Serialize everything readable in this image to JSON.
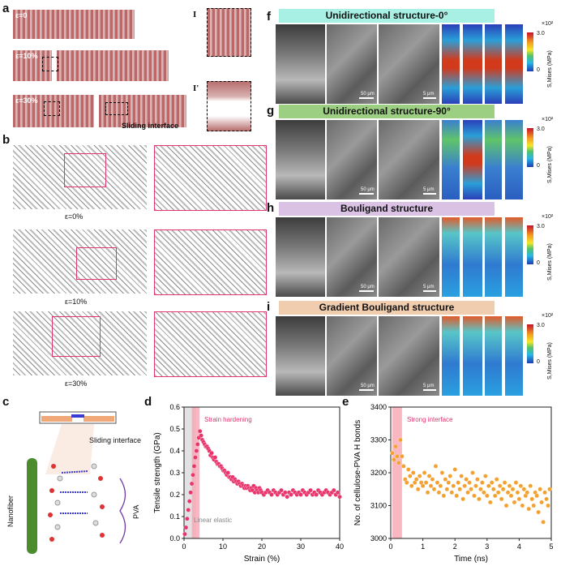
{
  "panels": {
    "a": {
      "label": "a",
      "strains": [
        "ε=0",
        "ε=10%",
        "ε=30%"
      ],
      "interface_label": "Sliding interface",
      "zoom_labels": [
        "I",
        "I'"
      ]
    },
    "b": {
      "label": "b",
      "strains": [
        "ε=0%",
        "ε=10%",
        "ε=30%"
      ]
    },
    "c": {
      "label": "c",
      "sliding": "Sliding interface",
      "nanofiber": "Nanofiber",
      "pva": "PVA"
    },
    "f": {
      "label": "f",
      "title": "Unidirectional structure-0°",
      "bg": "#a8f0e4"
    },
    "g": {
      "label": "g",
      "title": "Unidirectional structure-90°",
      "bg": "#9ccf82"
    },
    "h": {
      "label": "h",
      "title": "Bouligand structure",
      "bg": "#d9c2e4"
    },
    "i": {
      "label": "i",
      "title": "Gradient Bouligand structure",
      "bg": "#f1cdb0"
    },
    "colorbar": {
      "exp": "×10²",
      "max": "3.0",
      "min": "0",
      "label": "S,Mises (MPa)"
    },
    "scale_bars": {
      "s50": "50 μm",
      "s5": "5 μm"
    }
  },
  "chart_data": [
    {
      "type": "scatter",
      "panel": "d",
      "xlabel": "Strain (%)",
      "ylabel": "Tensile strength (GPa)",
      "xlim": [
        0,
        40
      ],
      "ylim": [
        0,
        0.6
      ],
      "xticks": [
        0,
        10,
        20,
        30,
        40
      ],
      "yticks": [
        0.0,
        0.1,
        0.2,
        0.3,
        0.4,
        0.5,
        0.6
      ],
      "annotations": [
        "Strain hardening",
        "Linear elastic"
      ],
      "color": "#e8336b",
      "x": [
        0.2,
        0.5,
        0.8,
        1.1,
        1.4,
        1.7,
        2.0,
        2.3,
        2.6,
        2.9,
        3.2,
        3.5,
        3.8,
        4.1,
        4.4,
        4.7,
        5.0,
        5.3,
        5.6,
        5.9,
        6.2,
        6.5,
        6.8,
        7.1,
        7.4,
        7.7,
        8.0,
        8.3,
        8.6,
        8.9,
        9.2,
        9.5,
        9.8,
        10.1,
        10.4,
        10.7,
        11.0,
        11.3,
        11.6,
        11.9,
        12.2,
        12.5,
        12.8,
        13.1,
        13.4,
        13.7,
        14.0,
        14.3,
        14.6,
        14.9,
        15.2,
        15.5,
        15.8,
        16.1,
        16.4,
        16.7,
        17.0,
        17.3,
        17.6,
        17.9,
        18.2,
        18.5,
        18.8,
        19.1,
        19.4,
        19.7,
        20.0,
        20.5,
        21.0,
        21.5,
        22.0,
        22.5,
        23.0,
        23.5,
        24.0,
        24.5,
        25.0,
        25.5,
        26.0,
        26.5,
        27.0,
        27.5,
        28.0,
        28.5,
        29.0,
        29.5,
        30.0,
        30.5,
        31.0,
        31.5,
        32.0,
        32.5,
        33.0,
        33.5,
        34.0,
        34.5,
        35.0,
        35.5,
        36.0,
        36.5,
        37.0,
        37.5,
        38.0,
        38.5,
        39.0,
        39.5,
        40.0
      ],
      "y": [
        0.02,
        0.05,
        0.09,
        0.13,
        0.17,
        0.21,
        0.25,
        0.29,
        0.33,
        0.37,
        0.4,
        0.43,
        0.46,
        0.49,
        0.47,
        0.45,
        0.44,
        0.43,
        0.42,
        0.42,
        0.41,
        0.4,
        0.38,
        0.39,
        0.37,
        0.36,
        0.37,
        0.35,
        0.34,
        0.34,
        0.33,
        0.33,
        0.32,
        0.31,
        0.31,
        0.3,
        0.29,
        0.3,
        0.28,
        0.28,
        0.27,
        0.28,
        0.26,
        0.27,
        0.26,
        0.25,
        0.26,
        0.25,
        0.24,
        0.25,
        0.24,
        0.23,
        0.24,
        0.23,
        0.24,
        0.23,
        0.22,
        0.23,
        0.22,
        0.24,
        0.21,
        0.23,
        0.22,
        0.21,
        0.23,
        0.22,
        0.21,
        0.2,
        0.21,
        0.22,
        0.21,
        0.2,
        0.22,
        0.21,
        0.2,
        0.21,
        0.22,
        0.2,
        0.21,
        0.19,
        0.21,
        0.2,
        0.22,
        0.21,
        0.2,
        0.21,
        0.2,
        0.22,
        0.21,
        0.2,
        0.21,
        0.22,
        0.2,
        0.21,
        0.2,
        0.22,
        0.21,
        0.2,
        0.21,
        0.22,
        0.21,
        0.2,
        0.21,
        0.22,
        0.2,
        0.21,
        0.19
      ]
    },
    {
      "type": "scatter",
      "panel": "e",
      "xlabel": "Time (ns)",
      "ylabel": "No. of cellulose-PVA H bonds",
      "xlim": [
        0,
        5
      ],
      "ylim": [
        3000,
        3400
      ],
      "xticks": [
        0,
        1,
        2,
        3,
        4,
        5
      ],
      "yticks": [
        3000,
        3100,
        3200,
        3300,
        3400
      ],
      "annotations": [
        "Strong interface"
      ],
      "color": "#f3a232",
      "x": [
        0.05,
        0.1,
        0.15,
        0.2,
        0.25,
        0.3,
        0.35,
        0.4,
        0.45,
        0.5,
        0.55,
        0.6,
        0.65,
        0.7,
        0.75,
        0.8,
        0.85,
        0.9,
        0.95,
        1.0,
        1.05,
        1.1,
        1.15,
        1.2,
        1.25,
        1.3,
        1.35,
        1.4,
        1.45,
        1.5,
        1.55,
        1.6,
        1.65,
        1.7,
        1.75,
        1.8,
        1.85,
        1.9,
        1.95,
        2.0,
        2.05,
        2.1,
        2.15,
        2.2,
        2.25,
        2.3,
        2.35,
        2.4,
        2.45,
        2.5,
        2.55,
        2.6,
        2.65,
        2.7,
        2.75,
        2.8,
        2.85,
        2.9,
        2.95,
        3.0,
        3.05,
        3.1,
        3.15,
        3.2,
        3.25,
        3.3,
        3.35,
        3.4,
        3.45,
        3.5,
        3.55,
        3.6,
        3.65,
        3.7,
        3.75,
        3.8,
        3.85,
        3.9,
        3.95,
        4.0,
        4.05,
        4.1,
        4.15,
        4.2,
        4.25,
        4.3,
        4.35,
        4.4,
        4.45,
        4.5,
        4.55,
        4.6,
        4.65,
        4.7,
        4.75,
        4.8,
        4.85,
        4.9,
        4.95
      ],
      "y": [
        3260,
        3240,
        3280,
        3250,
        3230,
        3300,
        3250,
        3220,
        3180,
        3170,
        3210,
        3190,
        3160,
        3200,
        3170,
        3180,
        3150,
        3190,
        3170,
        3160,
        3200,
        3170,
        3140,
        3190,
        3160,
        3180,
        3150,
        3220,
        3170,
        3140,
        3160,
        3200,
        3130,
        3180,
        3150,
        3170,
        3190,
        3140,
        3160,
        3210,
        3130,
        3170,
        3150,
        3190,
        3120,
        3160,
        3180,
        3140,
        3170,
        3150,
        3200,
        3130,
        3160,
        3180,
        3120,
        3150,
        3170,
        3140,
        3190,
        3130,
        3160,
        3110,
        3170,
        3150,
        3130,
        3180,
        3140,
        3160,
        3120,
        3150,
        3170,
        3100,
        3140,
        3160,
        3130,
        3150,
        3110,
        3170,
        3140,
        3120,
        3160,
        3100,
        3150,
        3130,
        3140,
        3090,
        3160,
        3120,
        3100,
        3140,
        3130,
        3080,
        3150,
        3110,
        3050,
        3140,
        3120,
        3100,
        3150
      ]
    }
  ]
}
